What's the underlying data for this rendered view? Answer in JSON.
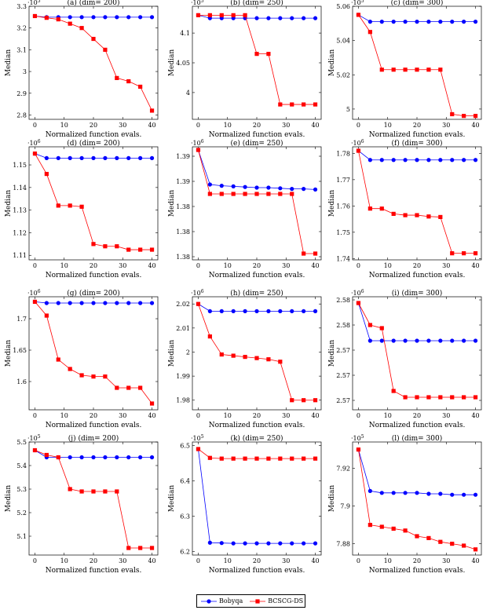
{
  "legend": [
    "Bobyqa",
    "BCSCG-DS"
  ],
  "colors": {
    "bobyqa": "#0000ff",
    "bcscg": "#ff0000"
  },
  "chart_data": [
    {
      "type": "line",
      "title": "(a) (dim= 200)",
      "xlabel": "Normalized function evals.",
      "ylabel": "Median",
      "multiplier": "·10^5",
      "ylim": [
        2.78,
        3.3
      ],
      "xlim": [
        -2,
        42
      ],
      "xticks": [
        0,
        10,
        20,
        30,
        40
      ],
      "yticks": [
        2.8,
        2.9,
        3,
        3.1,
        3.2,
        3.3
      ],
      "ytick_labels": [
        "2.8",
        "2.9",
        "3",
        "3.1",
        "3.2",
        "3.3"
      ],
      "x": [
        0,
        4,
        8,
        12,
        16,
        20,
        24,
        28,
        32,
        36,
        40
      ],
      "series": [
        {
          "name": "Bobyqa",
          "values": [
            3.255,
            3.25,
            3.25,
            3.25,
            3.25,
            3.25,
            3.25,
            3.25,
            3.25,
            3.25,
            3.25
          ]
        },
        {
          "name": "BCSCG-DS",
          "values": [
            3.255,
            3.247,
            3.24,
            3.22,
            3.2,
            3.15,
            3.1,
            2.97,
            2.955,
            2.93,
            2.82
          ]
        }
      ]
    },
    {
      "type": "line",
      "title": "(b) (dim= 250)",
      "xlabel": "Normalized function evals.",
      "ylabel": "Median",
      "multiplier": "·10^5",
      "ylim": [
        3.955,
        4.145
      ],
      "xlim": [
        -2,
        42
      ],
      "xticks": [
        0,
        10,
        20,
        30,
        40
      ],
      "yticks": [
        4.0,
        4.05,
        4.1
      ],
      "ytick_labels": [
        "4",
        "4.05",
        "4.1"
      ],
      "x": [
        0,
        4,
        8,
        12,
        16,
        20,
        24,
        28,
        32,
        36,
        40
      ],
      "series": [
        {
          "name": "Bobyqa",
          "values": [
            4.13,
            4.125,
            4.125,
            4.125,
            4.125,
            4.125,
            4.125,
            4.125,
            4.125,
            4.125,
            4.125
          ]
        },
        {
          "name": "BCSCG-DS",
          "values": [
            4.13,
            4.13,
            4.13,
            4.13,
            4.13,
            4.065,
            4.065,
            3.98,
            3.98,
            3.98,
            3.98
          ]
        }
      ]
    },
    {
      "type": "line",
      "title": "(c) (dim= 300)",
      "xlabel": "Normalized function evals.",
      "ylabel": "Median",
      "multiplier": "·10^5",
      "ylim": [
        4.994,
        5.06
      ],
      "xlim": [
        -2,
        42
      ],
      "xticks": [
        0,
        10,
        20,
        30,
        40
      ],
      "yticks": [
        5.0,
        5.02,
        5.04,
        5.06
      ],
      "ytick_labels": [
        "5",
        "5.02",
        "5.04",
        "5.06"
      ],
      "x": [
        0,
        4,
        8,
        12,
        16,
        20,
        24,
        28,
        32,
        36,
        40
      ],
      "series": [
        {
          "name": "Bobyqa",
          "values": [
            5.055,
            5.051,
            5.051,
            5.051,
            5.051,
            5.051,
            5.051,
            5.051,
            5.051,
            5.051,
            5.051
          ]
        },
        {
          "name": "BCSCG-DS",
          "values": [
            5.055,
            5.045,
            5.023,
            5.023,
            5.023,
            5.023,
            5.023,
            5.023,
            4.997,
            4.996,
            4.996
          ]
        }
      ]
    },
    {
      "type": "line",
      "title": "(d) (dim= 200)",
      "xlabel": "Normalized function evals.",
      "ylabel": "Median",
      "multiplier": "·10^6",
      "ylim": [
        1.108,
        1.158
      ],
      "xlim": [
        -2,
        42
      ],
      "xticks": [
        0,
        10,
        20,
        30,
        40
      ],
      "yticks": [
        1.11,
        1.12,
        1.13,
        1.14,
        1.15
      ],
      "ytick_labels": [
        "1.11",
        "1.12",
        "1.13",
        "1.14",
        "1.15"
      ],
      "x": [
        0,
        4,
        8,
        12,
        16,
        20,
        24,
        28,
        32,
        36,
        40
      ],
      "series": [
        {
          "name": "Bobyqa",
          "values": [
            1.155,
            1.153,
            1.153,
            1.153,
            1.153,
            1.153,
            1.153,
            1.153,
            1.153,
            1.153,
            1.153
          ]
        },
        {
          "name": "BCSCG-DS",
          "values": [
            1.155,
            1.146,
            1.132,
            1.132,
            1.1315,
            1.115,
            1.114,
            1.114,
            1.1125,
            1.1125,
            1.1125
          ]
        }
      ]
    },
    {
      "type": "line",
      "title": "(e) (dim= 250)",
      "xlabel": "Normalized function evals.",
      "ylabel": "Median",
      "multiplier": "·10^6",
      "ylim": [
        1.3755,
        1.3935
      ],
      "xlim": [
        -2,
        42
      ],
      "xticks": [
        0,
        10,
        20,
        30,
        40
      ],
      "yticks": [
        1.376,
        1.38,
        1.384,
        1.388,
        1.392
      ],
      "ytick_labels": [
        "1.38",
        "1.38",
        "1.38",
        "1.39",
        "1.39"
      ],
      "x": [
        0,
        4,
        8,
        12,
        16,
        20,
        24,
        28,
        32,
        36,
        40
      ],
      "series": [
        {
          "name": "Bobyqa",
          "values": [
            1.393,
            1.3875,
            1.3873,
            1.3872,
            1.3871,
            1.387,
            1.387,
            1.3869,
            1.3868,
            1.3868,
            1.3867
          ]
        },
        {
          "name": "BCSCG-DS",
          "values": [
            1.393,
            1.386,
            1.386,
            1.386,
            1.386,
            1.386,
            1.386,
            1.386,
            1.386,
            1.3765,
            1.3765
          ]
        }
      ]
    },
    {
      "type": "line",
      "title": "(f) (dim= 300)",
      "xlabel": "Normalized function evals.",
      "ylabel": "Median",
      "multiplier": "·10^6",
      "ylim": [
        1.7395,
        1.7825
      ],
      "xlim": [
        -2,
        42
      ],
      "xticks": [
        0,
        10,
        20,
        30,
        40
      ],
      "yticks": [
        1.74,
        1.75,
        1.76,
        1.77,
        1.78
      ],
      "ytick_labels": [
        "1.74",
        "1.75",
        "1.76",
        "1.77",
        "1.78"
      ],
      "x": [
        0,
        4,
        8,
        12,
        16,
        20,
        24,
        28,
        32,
        36,
        40
      ],
      "series": [
        {
          "name": "Bobyqa",
          "values": [
            1.781,
            1.7775,
            1.7775,
            1.7775,
            1.7775,
            1.7775,
            1.7775,
            1.7775,
            1.7775,
            1.7775,
            1.7775
          ]
        },
        {
          "name": "BCSCG-DS",
          "values": [
            1.781,
            1.759,
            1.759,
            1.757,
            1.7565,
            1.7565,
            1.756,
            1.7558,
            1.742,
            1.742,
            1.742
          ]
        }
      ]
    },
    {
      "type": "line",
      "title": "(g) (dim= 200)",
      "xlabel": "Normalized function evals.",
      "ylabel": "Median",
      "multiplier": "·10^6",
      "ylim": [
        1.555,
        1.735
      ],
      "xlim": [
        -2,
        42
      ],
      "xticks": [
        0,
        10,
        20,
        30,
        40
      ],
      "yticks": [
        1.6,
        1.65,
        1.7
      ],
      "ytick_labels": [
        "1.6",
        "1.65",
        "1.7"
      ],
      "x": [
        0,
        4,
        8,
        12,
        16,
        20,
        24,
        28,
        32,
        36,
        40
      ],
      "series": [
        {
          "name": "Bobyqa",
          "values": [
            1.727,
            1.725,
            1.725,
            1.725,
            1.725,
            1.725,
            1.725,
            1.725,
            1.725,
            1.725,
            1.725
          ]
        },
        {
          "name": "BCSCG-DS",
          "values": [
            1.727,
            1.705,
            1.635,
            1.62,
            1.61,
            1.608,
            1.608,
            1.59,
            1.59,
            1.59,
            1.565
          ]
        }
      ]
    },
    {
      "type": "line",
      "title": "(h) (dim= 250)",
      "xlabel": "Normalized function evals.",
      "ylabel": "Median",
      "multiplier": "·10^6",
      "ylim": [
        1.976,
        2.023
      ],
      "xlim": [
        -2,
        42
      ],
      "xticks": [
        0,
        10,
        20,
        30,
        40
      ],
      "yticks": [
        1.98,
        1.99,
        2.0,
        2.01,
        2.02
      ],
      "ytick_labels": [
        "1.98",
        "1.99",
        "2",
        "2.01",
        "2.02"
      ],
      "x": [
        0,
        4,
        8,
        12,
        16,
        20,
        24,
        28,
        32,
        36,
        40
      ],
      "series": [
        {
          "name": "Bobyqa",
          "values": [
            2.02,
            2.017,
            2.017,
            2.017,
            2.017,
            2.017,
            2.017,
            2.017,
            2.017,
            2.017,
            2.017
          ]
        },
        {
          "name": "BCSCG-DS",
          "values": [
            2.02,
            2.0065,
            1.999,
            1.9985,
            1.998,
            1.9975,
            1.997,
            1.996,
            1.98,
            1.98,
            1.98
          ]
        }
      ]
    },
    {
      "type": "line",
      "title": "(i) (dim= 300)",
      "xlabel": "Normalized function evals.",
      "ylabel": "Median",
      "multiplier": "·10^6",
      "ylim": [
        2.5625,
        2.5805
      ],
      "xlim": [
        -2,
        42
      ],
      "xticks": [
        0,
        10,
        20,
        30,
        40
      ],
      "yticks": [
        2.564,
        2.568,
        2.572,
        2.576,
        2.58
      ],
      "ytick_labels": [
        "2.57",
        "2.57",
        "2.57",
        "2.58",
        "2.58"
      ],
      "x": [
        0,
        4,
        8,
        12,
        16,
        20,
        24,
        28,
        32,
        36,
        40
      ],
      "series": [
        {
          "name": "Bobyqa",
          "values": [
            2.5795,
            2.5735,
            2.5735,
            2.5735,
            2.5735,
            2.5735,
            2.5735,
            2.5735,
            2.5735,
            2.5735,
            2.5735
          ]
        },
        {
          "name": "BCSCG-DS",
          "values": [
            2.5795,
            2.576,
            2.5755,
            2.5655,
            2.5645,
            2.5645,
            2.5645,
            2.5645,
            2.5645,
            2.5645,
            2.5645
          ]
        }
      ]
    },
    {
      "type": "line",
      "title": "(j) (dim= 200)",
      "xlabel": "Normalized function evals.",
      "ylabel": "Median",
      "multiplier": "·10^5",
      "ylim": [
        5.02,
        5.5
      ],
      "xlim": [
        -2,
        42
      ],
      "xticks": [
        0,
        10,
        20,
        30,
        40
      ],
      "yticks": [
        5.1,
        5.2,
        5.3,
        5.4,
        5.5
      ],
      "ytick_labels": [
        "5.1",
        "5.2",
        "5.3",
        "5.4",
        "5.5"
      ],
      "x": [
        0,
        4,
        8,
        12,
        16,
        20,
        24,
        28,
        32,
        36,
        40
      ],
      "series": [
        {
          "name": "Bobyqa",
          "values": [
            5.465,
            5.435,
            5.435,
            5.435,
            5.435,
            5.435,
            5.435,
            5.435,
            5.435,
            5.435,
            5.435
          ]
        },
        {
          "name": "BCSCG-DS",
          "values": [
            5.465,
            5.445,
            5.435,
            5.3,
            5.29,
            5.29,
            5.29,
            5.29,
            5.05,
            5.05,
            5.05
          ]
        }
      ]
    },
    {
      "type": "line",
      "title": "(k) (dim= 250)",
      "xlabel": "Normalized function evals.",
      "ylabel": "Median",
      "multiplier": "·10^5",
      "ylim": [
        6.19,
        6.51
      ],
      "xlim": [
        -2,
        42
      ],
      "xticks": [
        0,
        10,
        20,
        30,
        40
      ],
      "yticks": [
        6.2,
        6.3,
        6.4,
        6.5
      ],
      "ytick_labels": [
        "6.2",
        "6.3",
        "6.4",
        "6.5"
      ],
      "x": [
        0,
        4,
        8,
        12,
        16,
        20,
        24,
        28,
        32,
        36,
        40
      ],
      "series": [
        {
          "name": "Bobyqa",
          "values": [
            6.49,
            6.225,
            6.224,
            6.223,
            6.223,
            6.223,
            6.223,
            6.223,
            6.223,
            6.223,
            6.223
          ]
        },
        {
          "name": "BCSCG-DS",
          "values": [
            6.49,
            6.465,
            6.463,
            6.463,
            6.463,
            6.463,
            6.463,
            6.463,
            6.463,
            6.463,
            6.463
          ]
        }
      ]
    },
    {
      "type": "line",
      "title": "(l) (dim= 300)",
      "xlabel": "Normalized function evals.",
      "ylabel": "Median",
      "multiplier": "·10^5",
      "ylim": [
        7.874,
        7.934
      ],
      "xlim": [
        -2,
        42
      ],
      "xticks": [
        0,
        10,
        20,
        30,
        40
      ],
      "yticks": [
        7.88,
        7.9,
        7.92
      ],
      "ytick_labels": [
        "7.88",
        "7.9",
        "7.92"
      ],
      "x": [
        0,
        4,
        8,
        12,
        16,
        20,
        24,
        28,
        32,
        36,
        40
      ],
      "series": [
        {
          "name": "Bobyqa",
          "values": [
            7.93,
            7.908,
            7.907,
            7.907,
            7.907,
            7.907,
            7.9065,
            7.9065,
            7.906,
            7.906,
            7.906
          ]
        },
        {
          "name": "BCSCG-DS",
          "values": [
            7.93,
            7.89,
            7.889,
            7.888,
            7.887,
            7.884,
            7.883,
            7.881,
            7.88,
            7.879,
            7.877
          ]
        }
      ]
    }
  ]
}
